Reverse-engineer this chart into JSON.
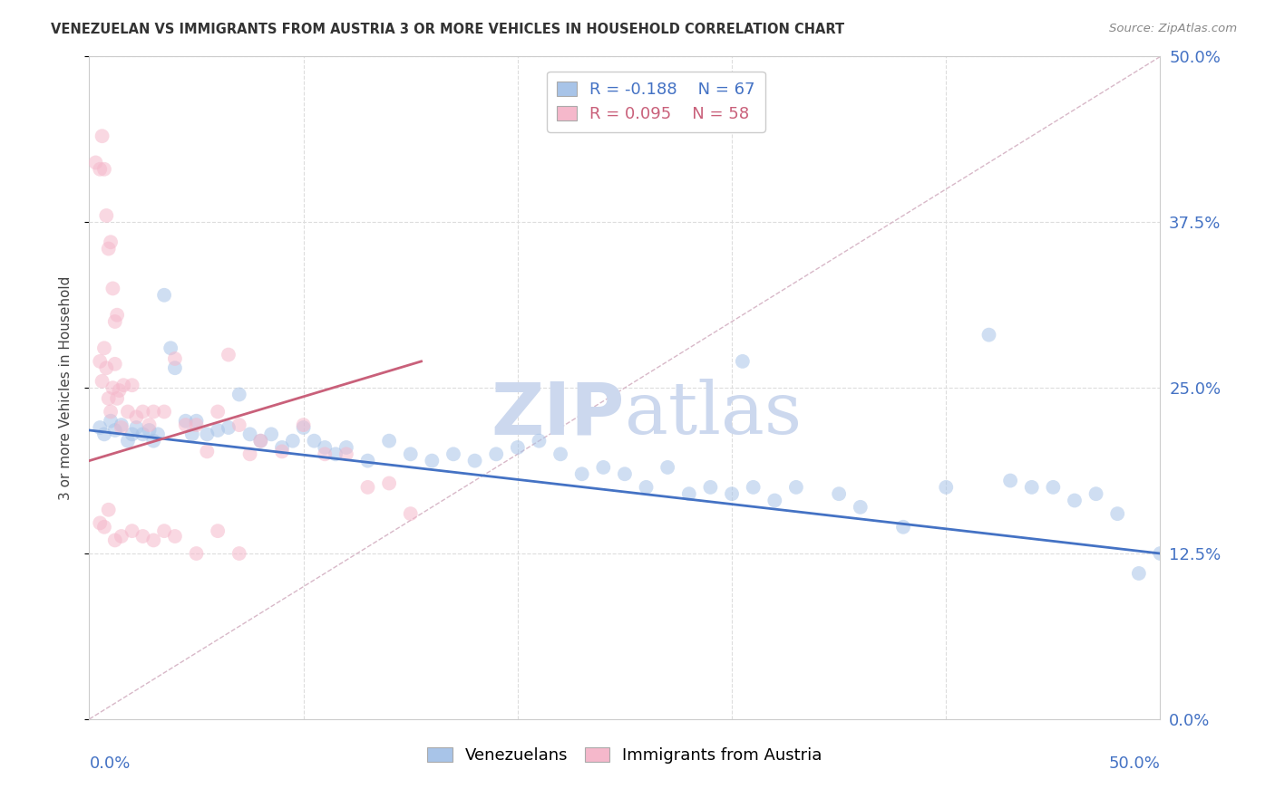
{
  "title": "VENEZUELAN VS IMMIGRANTS FROM AUSTRIA 3 OR MORE VEHICLES IN HOUSEHOLD CORRELATION CHART",
  "source": "Source: ZipAtlas.com",
  "ylabel": "3 or more Vehicles in Household",
  "ytick_labels": [
    "0.0%",
    "12.5%",
    "25.0%",
    "37.5%",
    "50.0%"
  ],
  "ytick_values": [
    0.0,
    0.125,
    0.25,
    0.375,
    0.5
  ],
  "xlim": [
    0.0,
    0.5
  ],
  "ylim": [
    0.0,
    0.5
  ],
  "legend_line1": "R = -0.188   N = 67",
  "legend_line2": "R = 0.095   N = 58",
  "blue_color": "#a8c4e8",
  "pink_color": "#f5b8cb",
  "blue_line_color": "#4472c4",
  "pink_line_color": "#c9607a",
  "diag_line_color": "#d8b8c8",
  "watermark_color": "#ccd8ee",
  "blue_trend": [
    0.218,
    0.125
  ],
  "pink_trend": [
    0.195,
    0.27
  ],
  "pink_trend_x": [
    0.0,
    0.155
  ],
  "venezuelan_x": [
    0.005,
    0.007,
    0.01,
    0.012,
    0.015,
    0.018,
    0.02,
    0.022,
    0.025,
    0.028,
    0.03,
    0.032,
    0.035,
    0.038,
    0.04,
    0.045,
    0.048,
    0.05,
    0.055,
    0.06,
    0.065,
    0.07,
    0.075,
    0.08,
    0.085,
    0.09,
    0.095,
    0.1,
    0.105,
    0.11,
    0.115,
    0.12,
    0.13,
    0.14,
    0.15,
    0.16,
    0.17,
    0.18,
    0.19,
    0.2,
    0.21,
    0.22,
    0.23,
    0.24,
    0.25,
    0.26,
    0.27,
    0.28,
    0.29,
    0.3,
    0.31,
    0.32,
    0.33,
    0.35,
    0.36,
    0.38,
    0.4,
    0.42,
    0.43,
    0.44,
    0.45,
    0.46,
    0.47,
    0.48,
    0.49,
    0.5,
    0.305
  ],
  "venezuelan_y": [
    0.22,
    0.215,
    0.225,
    0.218,
    0.222,
    0.21,
    0.215,
    0.22,
    0.215,
    0.218,
    0.21,
    0.215,
    0.32,
    0.28,
    0.265,
    0.225,
    0.215,
    0.225,
    0.215,
    0.218,
    0.22,
    0.245,
    0.215,
    0.21,
    0.215,
    0.205,
    0.21,
    0.22,
    0.21,
    0.205,
    0.2,
    0.205,
    0.195,
    0.21,
    0.2,
    0.195,
    0.2,
    0.195,
    0.2,
    0.205,
    0.21,
    0.2,
    0.185,
    0.19,
    0.185,
    0.175,
    0.19,
    0.17,
    0.175,
    0.17,
    0.175,
    0.165,
    0.175,
    0.17,
    0.16,
    0.145,
    0.175,
    0.29,
    0.18,
    0.175,
    0.175,
    0.165,
    0.17,
    0.155,
    0.11,
    0.125,
    0.27
  ],
  "austria_x": [
    0.003,
    0.005,
    0.006,
    0.007,
    0.008,
    0.009,
    0.01,
    0.011,
    0.012,
    0.013,
    0.005,
    0.006,
    0.007,
    0.008,
    0.009,
    0.01,
    0.011,
    0.012,
    0.013,
    0.014,
    0.015,
    0.016,
    0.018,
    0.02,
    0.022,
    0.025,
    0.028,
    0.03,
    0.035,
    0.04,
    0.045,
    0.05,
    0.055,
    0.06,
    0.065,
    0.07,
    0.075,
    0.08,
    0.09,
    0.1,
    0.11,
    0.12,
    0.13,
    0.14,
    0.15,
    0.005,
    0.007,
    0.009,
    0.012,
    0.015,
    0.02,
    0.025,
    0.03,
    0.035,
    0.04,
    0.05,
    0.06,
    0.07
  ],
  "austria_y": [
    0.42,
    0.415,
    0.44,
    0.415,
    0.38,
    0.355,
    0.36,
    0.325,
    0.3,
    0.305,
    0.27,
    0.255,
    0.28,
    0.265,
    0.242,
    0.232,
    0.25,
    0.268,
    0.242,
    0.248,
    0.22,
    0.252,
    0.232,
    0.252,
    0.228,
    0.232,
    0.222,
    0.232,
    0.232,
    0.272,
    0.222,
    0.222,
    0.202,
    0.232,
    0.275,
    0.222,
    0.2,
    0.21,
    0.202,
    0.222,
    0.2,
    0.2,
    0.175,
    0.178,
    0.155,
    0.148,
    0.145,
    0.158,
    0.135,
    0.138,
    0.142,
    0.138,
    0.135,
    0.142,
    0.138,
    0.125,
    0.142,
    0.125
  ]
}
